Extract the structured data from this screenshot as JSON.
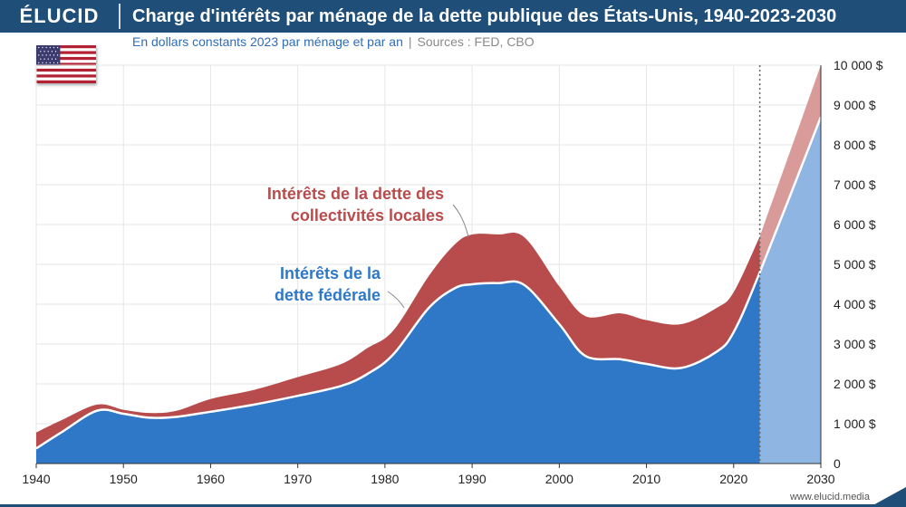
{
  "header": {
    "logo": "ÉLUCID",
    "title": "Charge d'intérêts par ménage de la dette publique des États-Unis, 1940-2023-2030",
    "subtitle": "En dollars constants 2023 par ménage et par an",
    "sources": "Sources : FED, CBO"
  },
  "footer": {
    "watermark": "www.elucid.media"
  },
  "colors": {
    "header_bg": "#1f4e79",
    "federal": "#2f78c8",
    "federal_projection": "#8fb5e3",
    "local": "#b84b4b",
    "local_projection": "#d99a9a",
    "federal_label": "#2f78c8",
    "local_label": "#b84b4b"
  },
  "icons": {
    "flag": "us-flag-icon"
  },
  "chart_data": {
    "type": "area",
    "stacked": true,
    "x": [
      1940,
      1943,
      1947,
      1950,
      1953,
      1956,
      1960,
      1965,
      1970,
      1975,
      1978,
      1981,
      1985,
      1988,
      1990,
      1993,
      1996,
      2000,
      2003,
      2007,
      2010,
      2014,
      2018,
      2020,
      2023,
      2030
    ],
    "series": [
      {
        "name": "Intérêts de la dette fédérale",
        "values": [
          380,
          800,
          1330,
          1250,
          1150,
          1170,
          1300,
          1480,
          1700,
          1950,
          2250,
          2750,
          3900,
          4400,
          4500,
          4530,
          4480,
          3500,
          2700,
          2620,
          2500,
          2400,
          2800,
          3300,
          4800,
          8700
        ]
      },
      {
        "name": "Intérêts de la dette des collectivités locales",
        "values": [
          400,
          300,
          150,
          100,
          120,
          150,
          320,
          370,
          470,
          550,
          650,
          600,
          800,
          1100,
          1250,
          1220,
          1200,
          950,
          1000,
          1150,
          1100,
          1100,
          1100,
          1000,
          900,
          1300
        ]
      }
    ],
    "projection_start": 2023,
    "xlim": [
      1940,
      2030
    ],
    "ylim": [
      0,
      10000
    ],
    "x_ticks": [
      "1940",
      "1950",
      "1960",
      "1970",
      "1980",
      "1990",
      "2000",
      "2010",
      "2020",
      "2030"
    ],
    "y_ticks": [
      "0",
      "1 000 $",
      "2 000 $",
      "3 000 $",
      "4 000 $",
      "5 000 $",
      "6 000 $",
      "7 000 $",
      "8 000 $",
      "9 000 $",
      "10 000 $"
    ],
    "annotations": {
      "local_line1": "Intérêts de la dette des",
      "local_line2": "collectivités locales",
      "federal_line1": "Intérêts de la",
      "federal_line2": "dette fédérale"
    },
    "grid": true
  }
}
